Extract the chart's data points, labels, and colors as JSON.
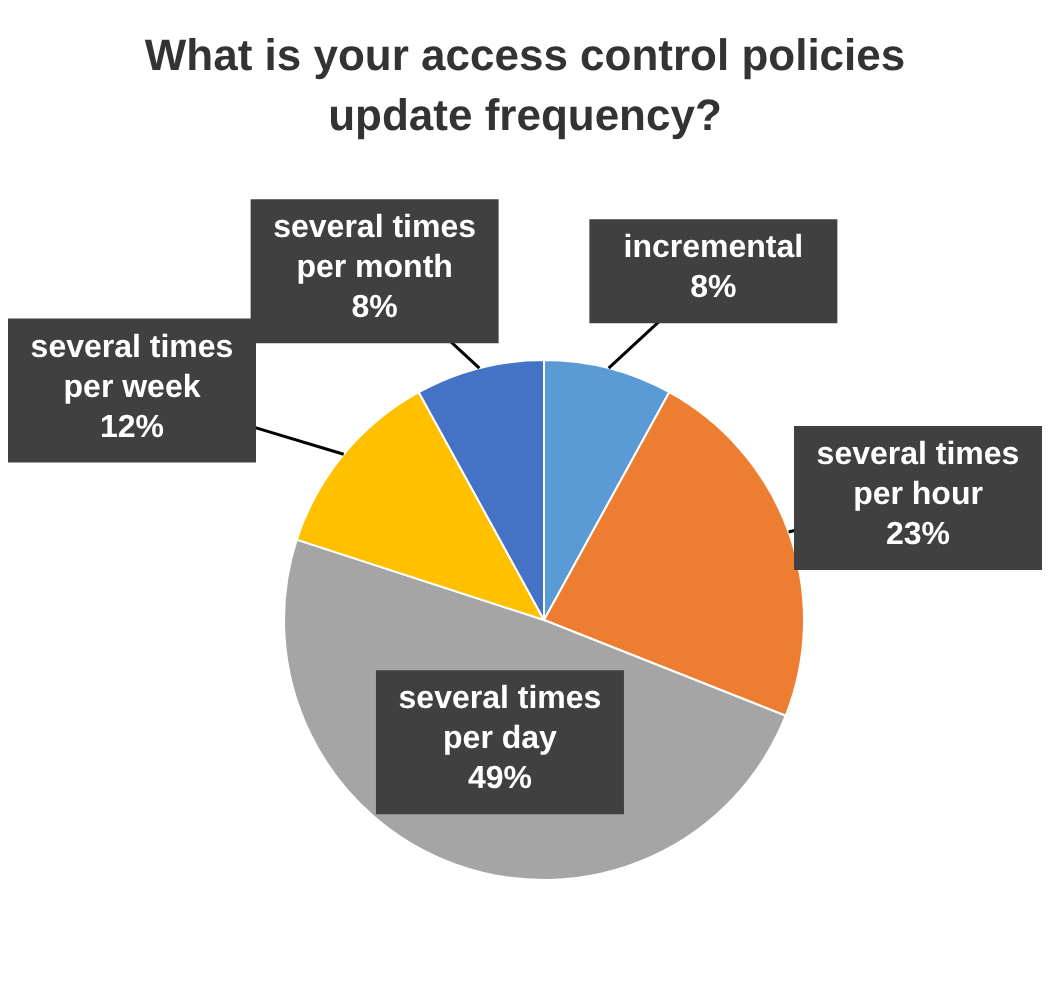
{
  "chart_data": {
    "type": "pie",
    "title": "What is your access control policies update frequency?",
    "categories": [
      "incremental",
      "several times per hour",
      "several times per day",
      "several times per week",
      "several times per month"
    ],
    "values": [
      8,
      23,
      49,
      12,
      8
    ],
    "value_labels": [
      "8%",
      "23%",
      "49%",
      "12%",
      "8%"
    ],
    "colors": [
      "#5b9bd5",
      "#ed7d31",
      "#a5a5a5",
      "#ffc000",
      "#4472c4"
    ]
  }
}
